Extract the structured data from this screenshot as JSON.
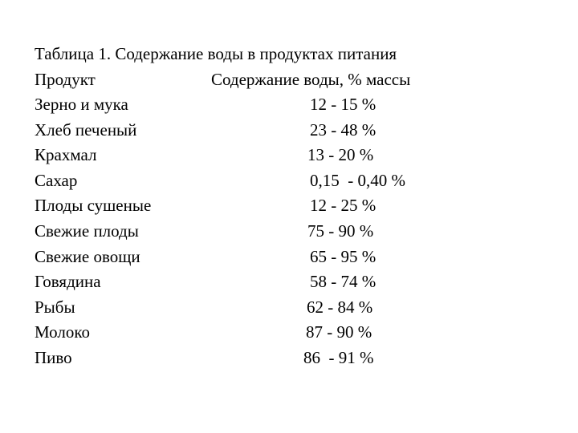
{
  "title": "Таблица 1. Содержание воды в продуктах питания",
  "header": {
    "product": "Продукт",
    "water": "Содержание воды, % массы"
  },
  "rows": [
    {
      "product": "Зерно и мука",
      "water": "12 - 15 %"
    },
    {
      "product": "Хлеб печеный",
      "water": "23 - 48 %"
    },
    {
      "product": "Крахмал",
      "water": "13 - 20 %"
    },
    {
      "product": "Сахар",
      "water": "0,15  - 0,40 %"
    },
    {
      "product": "Плоды сушеные",
      "water": "12 - 25 %"
    },
    {
      "product": "Свежие плоды",
      "water": "75 - 90 %"
    },
    {
      "product": "Свежие овощи",
      "water": "65 - 95 %"
    },
    {
      "product": "Говядина",
      "water": "58 - 74 %"
    },
    {
      "product": "Рыбы",
      "water": "62 - 84 %"
    },
    {
      "product": "Молоко",
      "water": "87 - 90 %"
    },
    {
      "product": "Пиво",
      "water": "86  - 91 %"
    }
  ]
}
